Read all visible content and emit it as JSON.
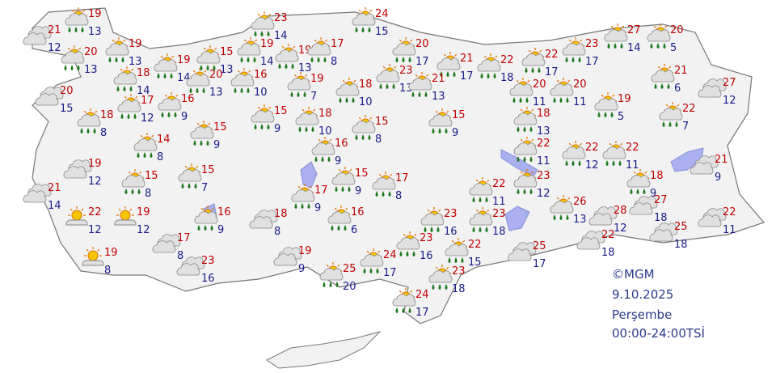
{
  "stations": [
    {
      "max": 19,
      "min": 13,
      "icon": "rain"
    },
    {
      "max": 21,
      "min": 12,
      "icon": "cloudy"
    },
    {
      "max": 20,
      "min": 13,
      "icon": "rain"
    },
    {
      "max": 19,
      "min": 13,
      "icon": "rain"
    },
    {
      "max": 19,
      "min": 14,
      "icon": "rain"
    },
    {
      "max": 15,
      "min": 13,
      "icon": "rain"
    },
    {
      "max": 19,
      "min": 14,
      "icon": "rain"
    },
    {
      "max": 19,
      "min": 13,
      "icon": "rain"
    },
    {
      "max": 23,
      "min": 14,
      "icon": "rain"
    },
    {
      "max": 17,
      "min": 8,
      "icon": "rain"
    },
    {
      "max": 24,
      "min": 15,
      "icon": "rain"
    },
    {
      "max": 20,
      "min": 17,
      "icon": "rain"
    },
    {
      "max": 21,
      "min": 17,
      "icon": "rain"
    },
    {
      "max": 22,
      "min": 18,
      "icon": "rain"
    },
    {
      "max": 22,
      "min": 17,
      "icon": "rain"
    },
    {
      "max": 23,
      "min": 17,
      "icon": "rain"
    },
    {
      "max": 27,
      "min": 14,
      "icon": "rain"
    },
    {
      "max": 20,
      "min": 5,
      "icon": "rain"
    },
    {
      "max": 18,
      "min": 14,
      "icon": "rain"
    },
    {
      "max": 20,
      "min": 15,
      "icon": "cloudy"
    },
    {
      "max": 18,
      "min": 8,
      "icon": "rain"
    },
    {
      "max": 17,
      "min": 12,
      "icon": "rain"
    },
    {
      "max": 16,
      "min": 9,
      "icon": "rain"
    },
    {
      "max": 20,
      "min": 13,
      "icon": "rain"
    },
    {
      "max": 16,
      "min": 10,
      "icon": "rain"
    },
    {
      "max": 19,
      "min": 7,
      "icon": "rain"
    },
    {
      "max": 18,
      "min": 10,
      "icon": "rain"
    },
    {
      "max": 23,
      "min": 13,
      "icon": "rain"
    },
    {
      "max": 21,
      "min": 13,
      "icon": "rain"
    },
    {
      "max": 20,
      "min": 11,
      "icon": "rain"
    },
    {
      "max": 20,
      "min": 11,
      "icon": "rain"
    },
    {
      "max": 19,
      "min": 5,
      "icon": "rain"
    },
    {
      "max": 21,
      "min": 6,
      "icon": "rain"
    },
    {
      "max": 27,
      "min": 12,
      "icon": "cloudy"
    },
    {
      "max": 22,
      "min": 7,
      "icon": "rain"
    },
    {
      "max": 15,
      "min": 9,
      "icon": "rain"
    },
    {
      "max": 18,
      "min": 10,
      "icon": "rain"
    },
    {
      "max": 15,
      "min": 8,
      "icon": "rain"
    },
    {
      "max": 15,
      "min": 9,
      "icon": "rain"
    },
    {
      "max": 18,
      "min": 13,
      "icon": "rain"
    },
    {
      "max": 15,
      "min": 9,
      "icon": "rain"
    },
    {
      "max": 14,
      "min": 8,
      "icon": "rain"
    },
    {
      "max": 16,
      "min": 9,
      "icon": "rain"
    },
    {
      "max": 22,
      "min": 11,
      "icon": "rain"
    },
    {
      "max": 22,
      "min": 12,
      "icon": "rain"
    },
    {
      "max": 22,
      "min": 11,
      "icon": "rain"
    },
    {
      "max": 21,
      "min": 9,
      "icon": "cloudy"
    },
    {
      "max": 19,
      "min": 12,
      "icon": "cloudy"
    },
    {
      "max": 15,
      "min": 8,
      "icon": "rain"
    },
    {
      "max": 15,
      "min": 7,
      "icon": "rain"
    },
    {
      "max": 15,
      "min": 9,
      "icon": "rain"
    },
    {
      "max": 17,
      "min": 8,
      "icon": "rain"
    },
    {
      "max": 22,
      "min": 11,
      "icon": "rain"
    },
    {
      "max": 23,
      "min": 12,
      "icon": "rain"
    },
    {
      "max": 18,
      "min": 9,
      "icon": "rain"
    },
    {
      "max": 21,
      "min": 14,
      "icon": "cloudy"
    },
    {
      "max": 17,
      "min": 9,
      "icon": "rain"
    },
    {
      "max": 26,
      "min": 13,
      "icon": "rain"
    },
    {
      "max": 22,
      "min": 12,
      "icon": "partly"
    },
    {
      "max": 19,
      "min": 12,
      "icon": "partly"
    },
    {
      "max": 16,
      "min": 9,
      "icon": "rain"
    },
    {
      "max": 18,
      "min": 8,
      "icon": "cloudy"
    },
    {
      "max": 16,
      "min": 6,
      "icon": "rain"
    },
    {
      "max": 23,
      "min": 16,
      "icon": "rain"
    },
    {
      "max": 23,
      "min": 18,
      "icon": "rain"
    },
    {
      "max": 28,
      "min": 12,
      "icon": "cloudy"
    },
    {
      "max": 27,
      "min": 18,
      "icon": "cloudy"
    },
    {
      "max": 25,
      "min": 18,
      "icon": "cloudy"
    },
    {
      "max": 22,
      "min": 11,
      "icon": "cloudy"
    },
    {
      "max": 17,
      "min": 8,
      "icon": "cloudy"
    },
    {
      "max": 22,
      "min": 18,
      "icon": "cloudy"
    },
    {
      "max": 25,
      "min": 17,
      "icon": "cloudy"
    },
    {
      "max": 23,
      "min": 16,
      "icon": "rain"
    },
    {
      "max": 22,
      "min": 15,
      "icon": "rain"
    },
    {
      "max": 24,
      "min": 17,
      "icon": "rain"
    },
    {
      "max": 19,
      "min": 9,
      "icon": "cloudy"
    },
    {
      "max": 19,
      "min": 8,
      "icon": "partly"
    },
    {
      "max": 23,
      "min": 16,
      "icon": "cloudy"
    },
    {
      "max": 25,
      "min": 20,
      "icon": "rain"
    },
    {
      "max": 23,
      "min": 18,
      "icon": "rain"
    },
    {
      "max": 24,
      "min": 17,
      "icon": "rain"
    }
  ],
  "footer": {
    "copyright": "©MGM",
    "date": "9.10.2025",
    "day": "Perşembe",
    "period": "00:00-24:00TSİ"
  }
}
